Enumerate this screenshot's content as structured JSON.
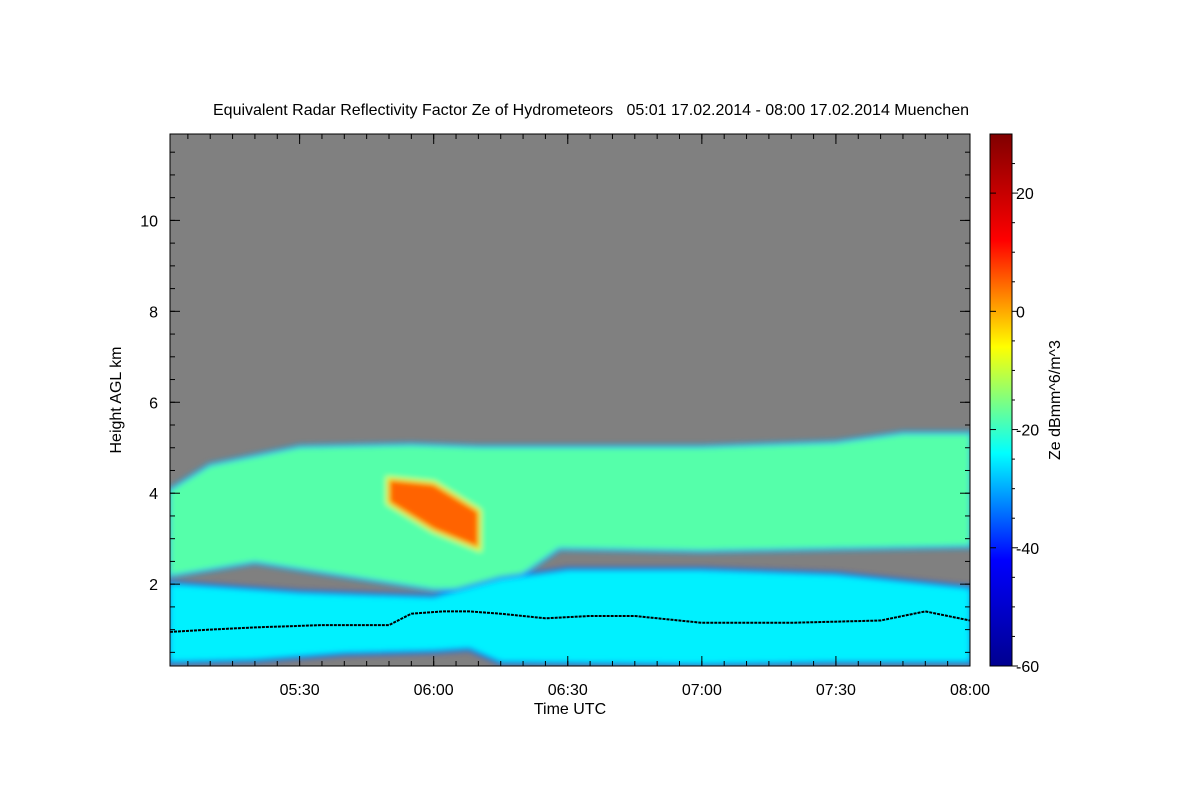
{
  "chart_data": {
    "type": "heatmap",
    "title": "Equivalent Radar Reflectivity Factor Ze of Hydrometeors   05:01 17.02.2014 - 08:00 17.02.2014 Muenchen",
    "xlabel": "Time UTC",
    "ylabel": "Height AGL km",
    "x_range": [
      "05:01",
      "08:00"
    ],
    "xlim_minutes": [
      301,
      480
    ],
    "ylim": [
      0.2,
      11.9
    ],
    "x_ticks": [
      {
        "label": "05:30",
        "minutes": 330
      },
      {
        "label": "06:00",
        "minutes": 360
      },
      {
        "label": "06:30",
        "minutes": 390
      },
      {
        "label": "07:00",
        "minutes": 420
      },
      {
        "label": "07:30",
        "minutes": 450
      },
      {
        "label": "08:00",
        "minutes": 480
      }
    ],
    "y_ticks": [
      {
        "label": "2",
        "value": 2
      },
      {
        "label": "4",
        "value": 4
      },
      {
        "label": "6",
        "value": 6
      },
      {
        "label": "8",
        "value": 8
      },
      {
        "label": "10",
        "value": 10
      }
    ],
    "colorbar": {
      "label": "Ze dBmm^6/m^3",
      "range": [
        -60,
        30
      ],
      "ticks": [
        {
          "label": "20",
          "value": 20
        },
        {
          "label": "0",
          "value": 0
        },
        {
          "label": "-20",
          "value": -20
        },
        {
          "label": "-40",
          "value": -40
        },
        {
          "label": "-60",
          "value": -60
        }
      ],
      "colormap": [
        "#00008f",
        "#0000ff",
        "#00ffff",
        "#ffff00",
        "#ff0000",
        "#800000"
      ]
    },
    "no_data_color": "#808080",
    "layers": [
      {
        "name": "upper-cloud",
        "ze_dbz": -18,
        "top_km": [
          [
            301,
            4.05
          ],
          [
            310,
            4.6
          ],
          [
            330,
            5.0
          ],
          [
            355,
            5.05
          ],
          [
            370,
            5.0
          ],
          [
            390,
            5.0
          ],
          [
            420,
            5.0
          ],
          [
            450,
            5.1
          ],
          [
            465,
            5.3
          ],
          [
            480,
            5.3
          ]
        ],
        "base_km": [
          [
            301,
            2.2
          ],
          [
            320,
            2.5
          ],
          [
            340,
            2.2
          ],
          [
            360,
            1.9
          ],
          [
            375,
            1.9
          ],
          [
            388,
            2.8
          ],
          [
            420,
            2.75
          ],
          [
            450,
            2.8
          ],
          [
            480,
            2.85
          ]
        ]
      },
      {
        "name": "core-max",
        "ze_dbz": 5,
        "top_km": [
          [
            350,
            4.3
          ],
          [
            360,
            4.2
          ],
          [
            370,
            3.6
          ]
        ],
        "base_km": [
          [
            350,
            3.8
          ],
          [
            360,
            3.2
          ],
          [
            370,
            2.8
          ]
        ]
      },
      {
        "name": "lower-cloud",
        "ze_dbz": -25,
        "top_km": [
          [
            301,
            2.0
          ],
          [
            330,
            1.8
          ],
          [
            360,
            1.7
          ],
          [
            375,
            2.1
          ],
          [
            390,
            2.3
          ],
          [
            420,
            2.3
          ],
          [
            450,
            2.2
          ],
          [
            470,
            2.0
          ],
          [
            480,
            1.9
          ]
        ],
        "base_km": [
          [
            301,
            0.3
          ],
          [
            320,
            0.35
          ],
          [
            340,
            0.5
          ],
          [
            360,
            0.55
          ],
          [
            368,
            0.6
          ],
          [
            375,
            0.3
          ],
          [
            420,
            0.25
          ],
          [
            450,
            0.3
          ],
          [
            480,
            0.3
          ]
        ]
      }
    ],
    "melting_layer_km": [
      [
        301,
        0.95
      ],
      [
        310,
        1.0
      ],
      [
        320,
        1.05
      ],
      [
        335,
        1.1
      ],
      [
        345,
        1.1
      ],
      [
        350,
        1.1
      ],
      [
        355,
        1.35
      ],
      [
        362,
        1.4
      ],
      [
        368,
        1.4
      ],
      [
        375,
        1.35
      ],
      [
        385,
        1.25
      ],
      [
        395,
        1.3
      ],
      [
        405,
        1.3
      ],
      [
        420,
        1.15
      ],
      [
        440,
        1.15
      ],
      [
        460,
        1.2
      ],
      [
        470,
        1.4
      ],
      [
        480,
        1.2
      ]
    ]
  }
}
